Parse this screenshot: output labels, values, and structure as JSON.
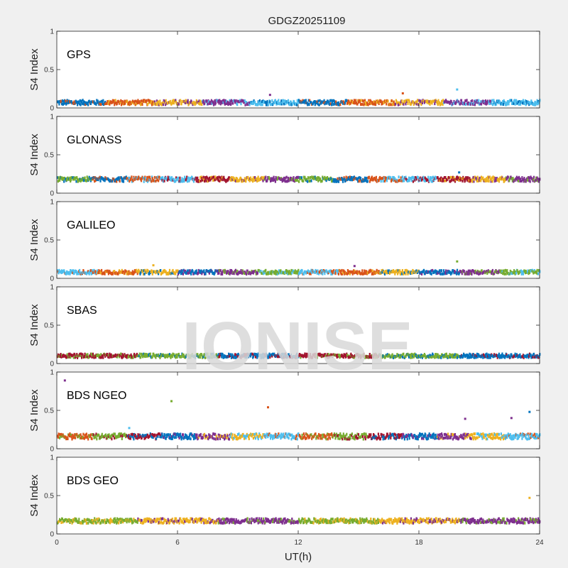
{
  "figure": {
    "title": "GDGZ20251109",
    "watermark": "IONISE",
    "xlabel": "UT(h)",
    "ylabel": "S4 Index",
    "xlim": [
      0,
      24
    ],
    "ylim": [
      0,
      1
    ],
    "x_ticks": [
      "0",
      "6",
      "12",
      "18",
      "24"
    ],
    "y_ticks": [
      "0",
      "0.5",
      "1"
    ]
  },
  "chart_data": [
    {
      "type": "scatter",
      "panel_label": "GPS",
      "xlim": [
        0,
        24
      ],
      "ylim": [
        0,
        1
      ],
      "colors": [
        "#0072BD",
        "#D95319",
        "#EDB120",
        "#7E2F8E",
        "#4DBEEE"
      ],
      "base_level": 0.07,
      "noise": 0.03,
      "outliers": [
        {
          "x": 10.6,
          "y": 0.17
        },
        {
          "x": 17.2,
          "y": 0.19
        },
        {
          "x": 19.9,
          "y": 0.24
        }
      ]
    },
    {
      "type": "scatter",
      "panel_label": "GLONASS",
      "xlim": [
        0,
        24
      ],
      "ylim": [
        0,
        1
      ],
      "colors": [
        "#77AC30",
        "#0072BD",
        "#D95319",
        "#4DBEEE",
        "#A2142F",
        "#EDB120",
        "#7E2F8E"
      ],
      "base_level": 0.18,
      "noise": 0.03,
      "outliers": [
        {
          "x": 20.0,
          "y": 0.27
        }
      ]
    },
    {
      "type": "scatter",
      "panel_label": "GALILEO",
      "xlim": [
        0,
        24
      ],
      "ylim": [
        0,
        1
      ],
      "colors": [
        "#4DBEEE",
        "#D95319",
        "#EDB120",
        "#0072BD",
        "#7E2F8E",
        "#77AC30"
      ],
      "base_level": 0.08,
      "noise": 0.025,
      "outliers": [
        {
          "x": 4.8,
          "y": 0.17
        },
        {
          "x": 14.8,
          "y": 0.16
        },
        {
          "x": 19.9,
          "y": 0.22
        }
      ]
    },
    {
      "type": "scatter",
      "panel_label": "SBAS",
      "xlim": [
        0,
        24
      ],
      "ylim": [
        0,
        1
      ],
      "colors": [
        "#A2142F",
        "#77AC30",
        "#0072BD"
      ],
      "base_level": 0.1,
      "noise": 0.025,
      "outliers": []
    },
    {
      "type": "scatter",
      "panel_label": "BDS NGEO",
      "xlim": [
        0,
        24
      ],
      "ylim": [
        0,
        1
      ],
      "colors": [
        "#D95319",
        "#77AC30",
        "#A2142F",
        "#0072BD",
        "#7E2F8E",
        "#EDB120",
        "#4DBEEE"
      ],
      "base_level": 0.16,
      "noise": 0.035,
      "outliers": [
        {
          "x": 0.4,
          "y": 0.89
        },
        {
          "x": 5.7,
          "y": 0.62
        },
        {
          "x": 10.5,
          "y": 0.54
        },
        {
          "x": 3.6,
          "y": 0.27
        },
        {
          "x": 20.3,
          "y": 0.39
        },
        {
          "x": 22.6,
          "y": 0.4
        },
        {
          "x": 23.5,
          "y": 0.48
        }
      ]
    },
    {
      "type": "scatter",
      "panel_label": "BDS GEO",
      "xlim": [
        0,
        24
      ],
      "ylim": [
        0,
        1
      ],
      "colors": [
        "#77AC30",
        "#EDB120",
        "#7E2F8E"
      ],
      "base_level": 0.17,
      "noise": 0.03,
      "outliers": [
        {
          "x": 23.5,
          "y": 0.47
        }
      ]
    }
  ]
}
